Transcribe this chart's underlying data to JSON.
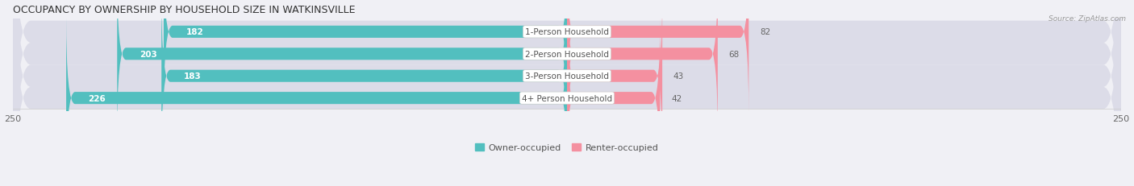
{
  "title": "OCCUPANCY BY OWNERSHIP BY HOUSEHOLD SIZE IN WATKINSVILLE",
  "source": "Source: ZipAtlas.com",
  "categories": [
    "1-Person Household",
    "2-Person Household",
    "3-Person Household",
    "4+ Person Household"
  ],
  "owner_values": [
    182,
    203,
    183,
    226
  ],
  "renter_values": [
    82,
    68,
    43,
    42
  ],
  "owner_color": "#52BFBF",
  "renter_color": "#F490A0",
  "bg_color": "#F0F0F5",
  "row_bg_color": "#E2E2EA",
  "row_bg_alt": "#EAEAF0",
  "max_value": 250,
  "title_fontsize": 9,
  "label_fontsize": 7.5,
  "value_fontsize": 7.5,
  "tick_fontsize": 8,
  "legend_fontsize": 8,
  "owner_label": "Owner-occupied",
  "renter_label": "Renter-occupied",
  "left_tick": "250",
  "right_tick": "250"
}
